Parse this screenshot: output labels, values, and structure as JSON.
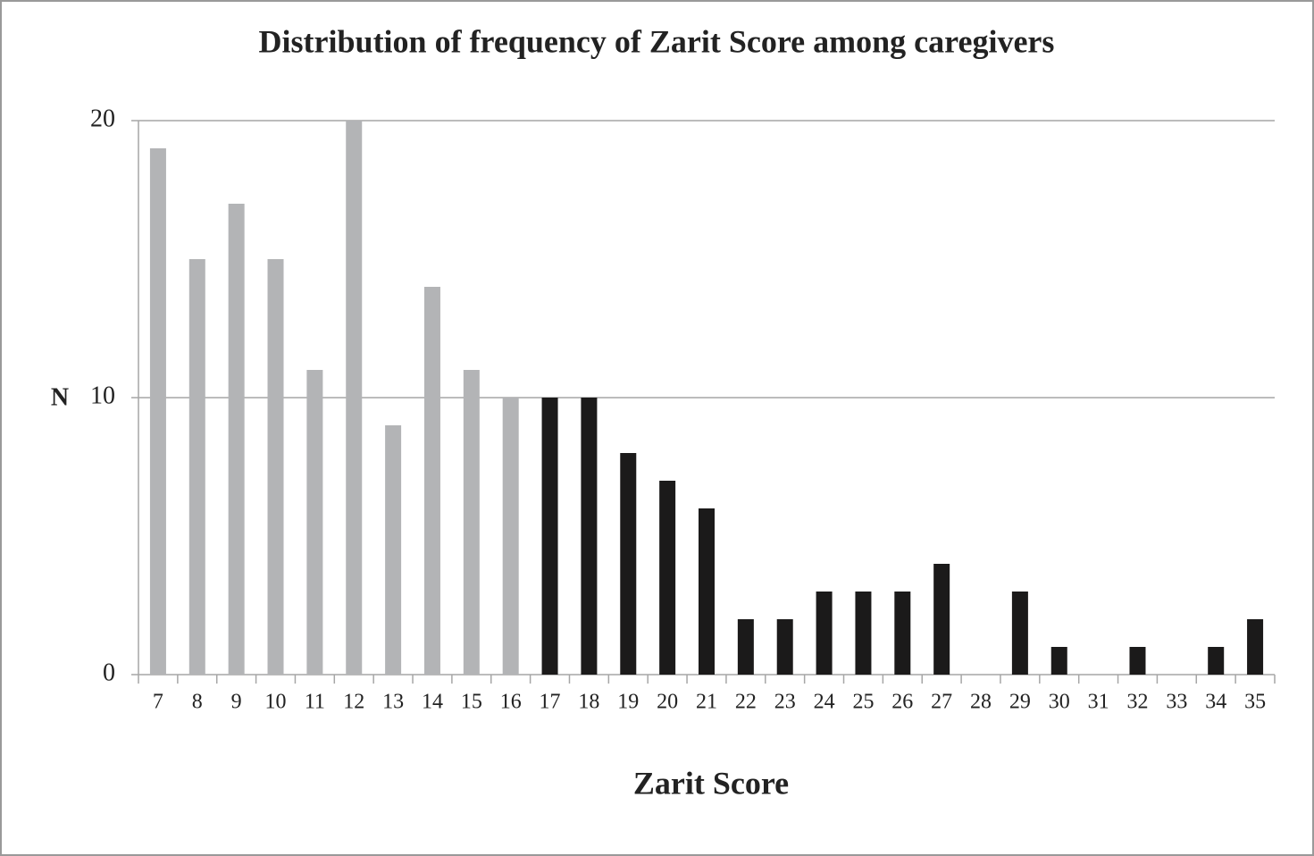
{
  "chart_data": {
    "type": "bar",
    "title": "Distribution of frequency of Zarit Score among caregivers",
    "x_label": "Zarit Score",
    "y_label": "N",
    "categories": [
      "7",
      "8",
      "9",
      "10",
      "11",
      "12",
      "13",
      "14",
      "15",
      "16",
      "17",
      "18",
      "19",
      "20",
      "21",
      "22",
      "23",
      "24",
      "25",
      "26",
      "27",
      "28",
      "29",
      "30",
      "31",
      "32",
      "33",
      "34",
      "35"
    ],
    "values": [
      19,
      15,
      17,
      15,
      11,
      20,
      9,
      14,
      11,
      10,
      10,
      10,
      8,
      7,
      6,
      2,
      2,
      3,
      3,
      3,
      4,
      0,
      3,
      1,
      0,
      1,
      0,
      1,
      2
    ],
    "colors": [
      "#b3b4b6",
      "#b3b4b6",
      "#b3b4b6",
      "#b3b4b6",
      "#b3b4b6",
      "#b3b4b6",
      "#b3b4b6",
      "#b3b4b6",
      "#b3b4b6",
      "#b3b4b6",
      "#1b1a1a",
      "#1b1a1a",
      "#1b1a1a",
      "#1b1a1a",
      "#1b1a1a",
      "#1b1a1a",
      "#1b1a1a",
      "#1b1a1a",
      "#1b1a1a",
      "#1b1a1a",
      "#1b1a1a",
      "#1b1a1a",
      "#1b1a1a",
      "#1b1a1a",
      "#1b1a1a",
      "#1b1a1a",
      "#1b1a1a",
      "#1b1a1a",
      "#1b1a1a"
    ],
    "ylim": [
      0,
      20
    ],
    "yticks": [
      0,
      10,
      20
    ],
    "grid": true
  }
}
